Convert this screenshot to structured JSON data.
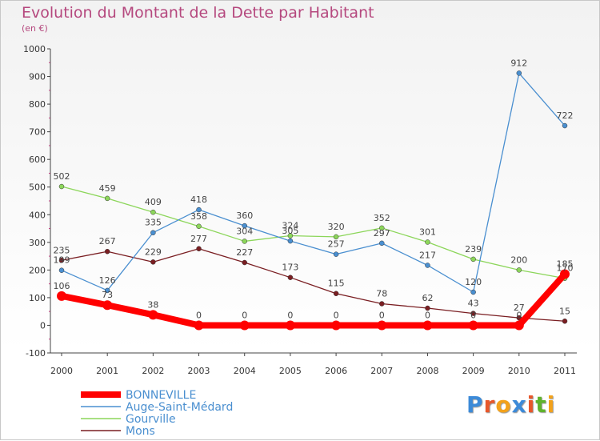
{
  "title": "Evolution du Montant de la Dette par Habitant",
  "unit": "(en €)",
  "logo": {
    "text": "Proxiti",
    "colors": [
      "#3c8ad8",
      "#e8572a",
      "#f3a21b",
      "#3c8ad8",
      "#e8572a",
      "#5fb32c",
      "#f3a21b"
    ]
  },
  "chart_data": {
    "type": "line",
    "x": [
      "2000",
      "2001",
      "2002",
      "2003",
      "2004",
      "2005",
      "2006",
      "2007",
      "2008",
      "2009",
      "2010",
      "2011"
    ],
    "ylim": [
      -100,
      1000
    ],
    "yticks": [
      "-100",
      "0",
      "100",
      "200",
      "300",
      "400",
      "500",
      "600",
      "700",
      "800",
      "900",
      "1000"
    ],
    "grid": false,
    "legend": "bottom-left",
    "series": [
      {
        "name": "BONNEVILLE",
        "color": "#ff0000",
        "values": [
          106,
          73,
          38,
          0,
          0,
          0,
          0,
          0,
          0,
          0,
          0,
          185
        ],
        "labels": [
          "106",
          "73",
          "38",
          "0",
          "0",
          "0",
          "0",
          "0",
          "0",
          "0",
          "0",
          "185"
        ]
      },
      {
        "name": "Auge-Saint-Médard",
        "color": "#4a8fd0",
        "values": [
          199,
          126,
          335,
          418,
          360,
          305,
          257,
          297,
          217,
          120,
          912,
          722
        ],
        "labels": [
          "199",
          "126",
          "335",
          "418",
          "360",
          "305",
          "257",
          "297",
          "217",
          "120",
          "912",
          "722"
        ]
      },
      {
        "name": "Gourville",
        "color": "#8cd65a",
        "values": [
          502,
          459,
          409,
          358,
          304,
          324,
          320,
          352,
          301,
          239,
          200,
          170
        ],
        "labels": [
          "502",
          "459",
          "409",
          "358",
          "304",
          "324",
          "320",
          "352",
          "301",
          "239",
          "200",
          "170"
        ]
      },
      {
        "name": "Mons",
        "color": "#7a1e22",
        "values": [
          235,
          267,
          229,
          277,
          227,
          173,
          115,
          78,
          62,
          43,
          27,
          15
        ],
        "labels": [
          "235",
          "267",
          "229",
          "277",
          "227",
          "173",
          "115",
          "78",
          "62",
          "43",
          "27",
          "15"
        ]
      }
    ]
  }
}
